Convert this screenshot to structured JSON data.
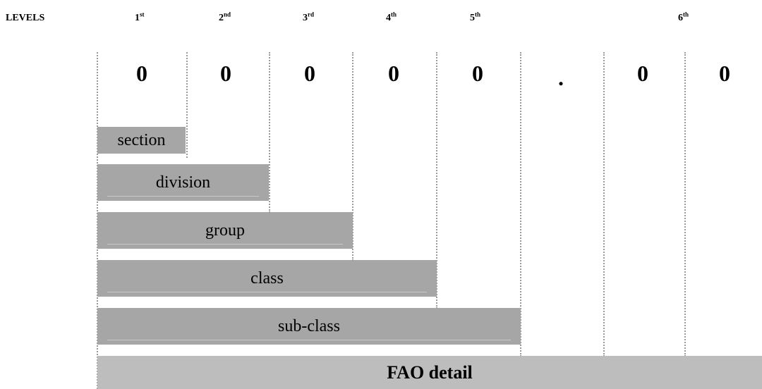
{
  "header": {
    "title": "LEVELS",
    "levels": [
      {
        "num": "1",
        "suffix": "st"
      },
      {
        "num": "2",
        "suffix": "nd"
      },
      {
        "num": "3",
        "suffix": "rd"
      },
      {
        "num": "4",
        "suffix": "th"
      },
      {
        "num": "5",
        "suffix": "th"
      },
      {
        "num": "6",
        "suffix": "th"
      }
    ]
  },
  "code": {
    "digits": [
      "0",
      "0",
      "0",
      "0",
      "0",
      ".",
      "0",
      "0"
    ]
  },
  "bars": [
    {
      "label": "section"
    },
    {
      "label": "division"
    },
    {
      "label": "group"
    },
    {
      "label": "class"
    },
    {
      "label": "sub-class"
    },
    {
      "label": "FAO detail"
    }
  ],
  "colors": {
    "bar": "#a6a6a6",
    "bar_detail": "#bdbdbd",
    "separator": "#9a9a9a"
  }
}
